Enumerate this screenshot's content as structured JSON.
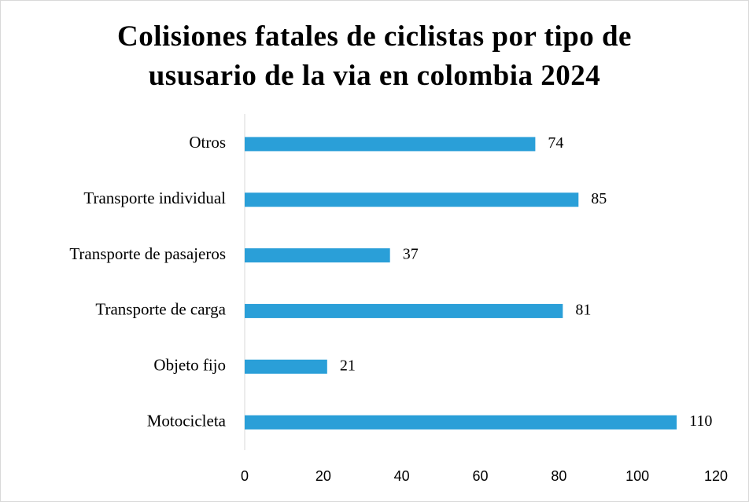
{
  "chart_data": {
    "type": "bar",
    "orientation": "horizontal",
    "title": "Colisiones fatales de ciclistas por tipo de ususario de la via en colombia 2024",
    "categories": [
      "Otros",
      "Transporte individual",
      "Transporte de pasajeros",
      "Transporte de carga",
      "Objeto fijo",
      "Motocicleta"
    ],
    "values": [
      74,
      85,
      37,
      81,
      21,
      110
    ],
    "color": "#2a9fd8",
    "xlim": [
      0,
      120
    ],
    "xticks": [
      0,
      20,
      40,
      60,
      80,
      100,
      120
    ],
    "grid": false,
    "data_labels": true
  }
}
